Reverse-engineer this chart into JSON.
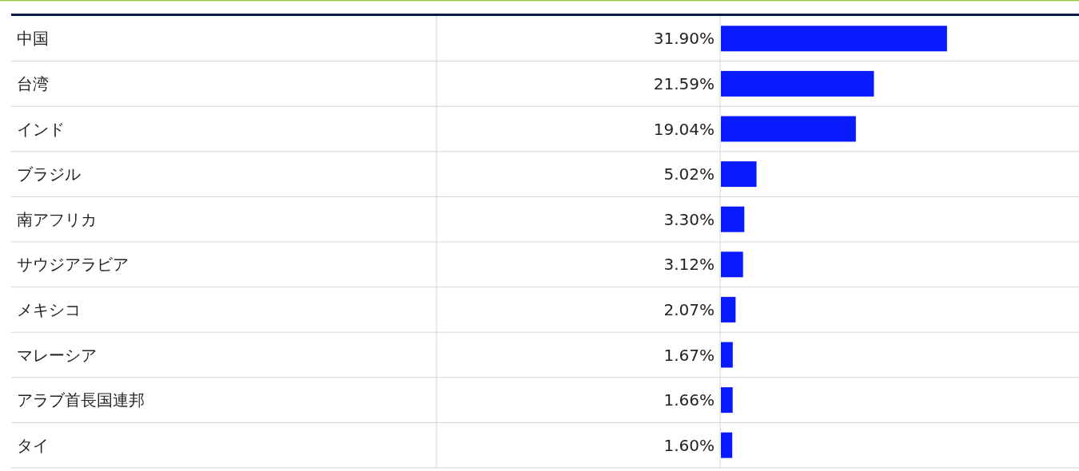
{
  "chart_data": {
    "type": "bar",
    "orientation": "horizontal",
    "data_labels": true,
    "categories": [
      "中国",
      "台湾",
      "インド",
      "ブラジル",
      "南アフリカ",
      "サウジアラビア",
      "メキシコ",
      "マレーシア",
      "アラブ首長国連邦",
      "タイ"
    ],
    "values": [
      31.9,
      21.59,
      19.04,
      5.02,
      3.3,
      3.12,
      2.07,
      1.67,
      1.66,
      1.6
    ],
    "value_labels": [
      "31.90%",
      "21.59%",
      "19.04%",
      "5.02%",
      "3.30%",
      "3.12%",
      "2.07%",
      "1.67%",
      "1.66%",
      "1.60%"
    ],
    "color": "#0a1aff"
  }
}
